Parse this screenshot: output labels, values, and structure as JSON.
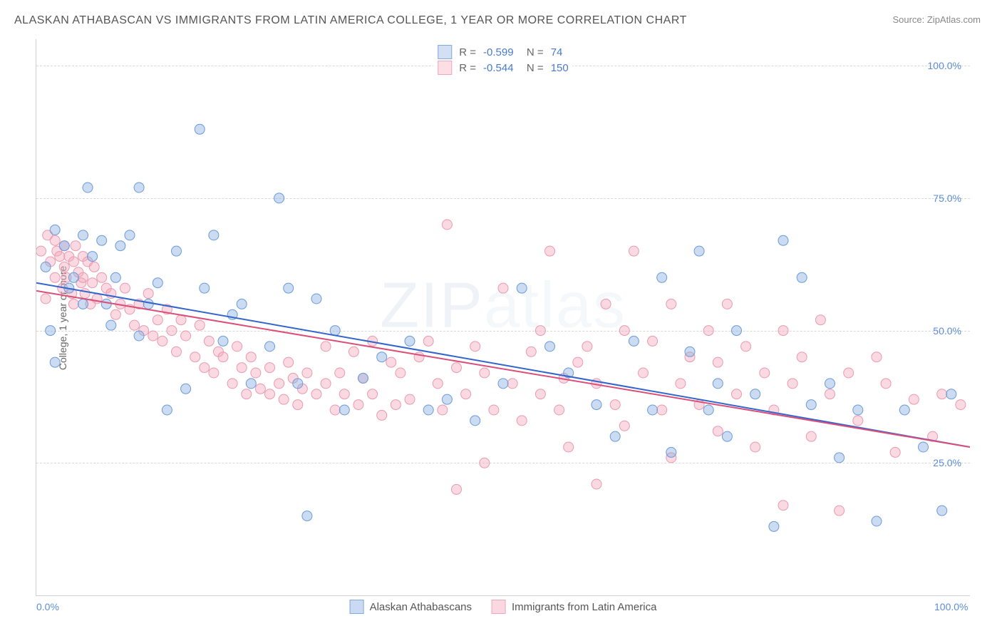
{
  "title": "ALASKAN ATHABASCAN VS IMMIGRANTS FROM LATIN AMERICA COLLEGE, 1 YEAR OR MORE CORRELATION CHART",
  "source": "Source: ZipAtlas.com",
  "ylabel": "College, 1 year or more",
  "watermark_bold": "ZIP",
  "watermark_thin": "atlas",
  "chart": {
    "type": "scatter",
    "xlim": [
      0,
      100
    ],
    "ylim": [
      0,
      105
    ],
    "x_ticks": [
      {
        "v": 0,
        "label": "0.0%"
      },
      {
        "v": 100,
        "label": "100.0%"
      }
    ],
    "y_ticks": [
      {
        "v": 25,
        "label": "25.0%"
      },
      {
        "v": 50,
        "label": "50.0%"
      },
      {
        "v": 75,
        "label": "75.0%"
      },
      {
        "v": 100,
        "label": "100.0%"
      }
    ],
    "grid_color": "#d8d8d8",
    "background_color": "#ffffff",
    "series": [
      {
        "name": "Alaskan Athabascans",
        "color_fill": "rgba(140,175,225,0.45)",
        "color_stroke": "#6a9bd8",
        "trend_color": "#3366cc",
        "R": "-0.599",
        "N": "74",
        "marker_radius": 7,
        "trend": {
          "x1": 0,
          "y1": 59,
          "x2": 100,
          "y2": 28
        },
        "points": [
          [
            1,
            62
          ],
          [
            1.5,
            50
          ],
          [
            2,
            44
          ],
          [
            2,
            69
          ],
          [
            3,
            66
          ],
          [
            3.5,
            58
          ],
          [
            4,
            60
          ],
          [
            5,
            55
          ],
          [
            5,
            68
          ],
          [
            5.5,
            77
          ],
          [
            6,
            64
          ],
          [
            7,
            67
          ],
          [
            7.5,
            55
          ],
          [
            8,
            51
          ],
          [
            8.5,
            60
          ],
          [
            9,
            66
          ],
          [
            10,
            68
          ],
          [
            11,
            77
          ],
          [
            11,
            49
          ],
          [
            12,
            55
          ],
          [
            13,
            59
          ],
          [
            14,
            35
          ],
          [
            15,
            65
          ],
          [
            16,
            39
          ],
          [
            17.5,
            88
          ],
          [
            18,
            58
          ],
          [
            19,
            68
          ],
          [
            20,
            48
          ],
          [
            21,
            53
          ],
          [
            22,
            55
          ],
          [
            23,
            40
          ],
          [
            25,
            47
          ],
          [
            26,
            75
          ],
          [
            27,
            58
          ],
          [
            28,
            40
          ],
          [
            29,
            15
          ],
          [
            30,
            56
          ],
          [
            32,
            50
          ],
          [
            33,
            35
          ],
          [
            35,
            41
          ],
          [
            37,
            45
          ],
          [
            40,
            48
          ],
          [
            42,
            35
          ],
          [
            44,
            37
          ],
          [
            47,
            33
          ],
          [
            50,
            40
          ],
          [
            52,
            58
          ],
          [
            55,
            47
          ],
          [
            57,
            42
          ],
          [
            60,
            36
          ],
          [
            62,
            30
          ],
          [
            64,
            48
          ],
          [
            66,
            35
          ],
          [
            67,
            60
          ],
          [
            68,
            27
          ],
          [
            70,
            46
          ],
          [
            71,
            65
          ],
          [
            72,
            35
          ],
          [
            73,
            40
          ],
          [
            74,
            30
          ],
          [
            75,
            50
          ],
          [
            77,
            38
          ],
          [
            79,
            13
          ],
          [
            80,
            67
          ],
          [
            82,
            60
          ],
          [
            83,
            36
          ],
          [
            85,
            40
          ],
          [
            86,
            26
          ],
          [
            88,
            35
          ],
          [
            90,
            14
          ],
          [
            93,
            35
          ],
          [
            95,
            28
          ],
          [
            97,
            16
          ],
          [
            98,
            38
          ]
        ]
      },
      {
        "name": "Immigrants from Latin America",
        "color_fill": "rgba(245,170,190,0.45)",
        "color_stroke": "#e99ab0",
        "trend_color": "#d94f7a",
        "R": "-0.544",
        "N": "150",
        "marker_radius": 7,
        "trend": {
          "x1": 0,
          "y1": 57.5,
          "x2": 100,
          "y2": 28
        },
        "points": [
          [
            0.5,
            65
          ],
          [
            1,
            56
          ],
          [
            1.2,
            68
          ],
          [
            1.5,
            63
          ],
          [
            2,
            67
          ],
          [
            2,
            60
          ],
          [
            2.2,
            65
          ],
          [
            2.5,
            64
          ],
          [
            2.8,
            58
          ],
          [
            3,
            66
          ],
          [
            3,
            62
          ],
          [
            3.2,
            60
          ],
          [
            3.5,
            64
          ],
          [
            3.8,
            57
          ],
          [
            4,
            63
          ],
          [
            4,
            55
          ],
          [
            4.2,
            66
          ],
          [
            4.5,
            61
          ],
          [
            4.8,
            59
          ],
          [
            5,
            64
          ],
          [
            5,
            60
          ],
          [
            5.2,
            57
          ],
          [
            5.5,
            63
          ],
          [
            5.8,
            55
          ],
          [
            6,
            59
          ],
          [
            6.2,
            62
          ],
          [
            6.5,
            56
          ],
          [
            7,
            60
          ],
          [
            7.5,
            58
          ],
          [
            8,
            57
          ],
          [
            8.5,
            53
          ],
          [
            9,
            55
          ],
          [
            9.5,
            58
          ],
          [
            10,
            54
          ],
          [
            10.5,
            51
          ],
          [
            11,
            55
          ],
          [
            11.5,
            50
          ],
          [
            12,
            57
          ],
          [
            12.5,
            49
          ],
          [
            13,
            52
          ],
          [
            13.5,
            48
          ],
          [
            14,
            54
          ],
          [
            14.5,
            50
          ],
          [
            15,
            46
          ],
          [
            15.5,
            52
          ],
          [
            16,
            49
          ],
          [
            17,
            45
          ],
          [
            17.5,
            51
          ],
          [
            18,
            43
          ],
          [
            18.5,
            48
          ],
          [
            19,
            42
          ],
          [
            19.5,
            46
          ],
          [
            20,
            45
          ],
          [
            21,
            40
          ],
          [
            21.5,
            47
          ],
          [
            22,
            43
          ],
          [
            22.5,
            38
          ],
          [
            23,
            45
          ],
          [
            23.5,
            42
          ],
          [
            24,
            39
          ],
          [
            25,
            38
          ],
          [
            25,
            43
          ],
          [
            26,
            40
          ],
          [
            26.5,
            37
          ],
          [
            27,
            44
          ],
          [
            27.5,
            41
          ],
          [
            28,
            36
          ],
          [
            28.5,
            39
          ],
          [
            29,
            42
          ],
          [
            30,
            38
          ],
          [
            31,
            47
          ],
          [
            31,
            40
          ],
          [
            32,
            35
          ],
          [
            32.5,
            42
          ],
          [
            33,
            38
          ],
          [
            34,
            46
          ],
          [
            34.5,
            36
          ],
          [
            35,
            41
          ],
          [
            36,
            38
          ],
          [
            36,
            48
          ],
          [
            37,
            34
          ],
          [
            38,
            44
          ],
          [
            38.5,
            36
          ],
          [
            39,
            42
          ],
          [
            40,
            37
          ],
          [
            41,
            45
          ],
          [
            42,
            48
          ],
          [
            43,
            40
          ],
          [
            43.5,
            35
          ],
          [
            44,
            70
          ],
          [
            45,
            20
          ],
          [
            45,
            43
          ],
          [
            46,
            38
          ],
          [
            47,
            47
          ],
          [
            48,
            42
          ],
          [
            48,
            25
          ],
          [
            49,
            35
          ],
          [
            50,
            58
          ],
          [
            51,
            40
          ],
          [
            52,
            33
          ],
          [
            53,
            46
          ],
          [
            54,
            50
          ],
          [
            54,
            38
          ],
          [
            55,
            65
          ],
          [
            56,
            35
          ],
          [
            56.5,
            41
          ],
          [
            57,
            28
          ],
          [
            58,
            44
          ],
          [
            59,
            47
          ],
          [
            60,
            40
          ],
          [
            60,
            21
          ],
          [
            61,
            55
          ],
          [
            62,
            36
          ],
          [
            63,
            32
          ],
          [
            63,
            50
          ],
          [
            64,
            65
          ],
          [
            65,
            42
          ],
          [
            66,
            48
          ],
          [
            67,
            35
          ],
          [
            68,
            55
          ],
          [
            68,
            26
          ],
          [
            69,
            40
          ],
          [
            70,
            45
          ],
          [
            71,
            36
          ],
          [
            72,
            50
          ],
          [
            73,
            31
          ],
          [
            73,
            44
          ],
          [
            74,
            55
          ],
          [
            75,
            38
          ],
          [
            76,
            47
          ],
          [
            77,
            28
          ],
          [
            78,
            42
          ],
          [
            79,
            35
          ],
          [
            80,
            17
          ],
          [
            80,
            50
          ],
          [
            81,
            40
          ],
          [
            82,
            45
          ],
          [
            83,
            30
          ],
          [
            84,
            52
          ],
          [
            85,
            38
          ],
          [
            86,
            16
          ],
          [
            87,
            42
          ],
          [
            88,
            33
          ],
          [
            90,
            45
          ],
          [
            91,
            40
          ],
          [
            92,
            27
          ],
          [
            94,
            37
          ],
          [
            96,
            30
          ],
          [
            97,
            38
          ],
          [
            99,
            36
          ]
        ]
      }
    ]
  },
  "legend_bottom": [
    {
      "label": "Alaskan Athabascans",
      "fill": "rgba(140,175,225,0.55)",
      "stroke": "#6a9bd8"
    },
    {
      "label": "Immigrants from Latin America",
      "fill": "rgba(245,170,190,0.55)",
      "stroke": "#e99ab0"
    }
  ]
}
